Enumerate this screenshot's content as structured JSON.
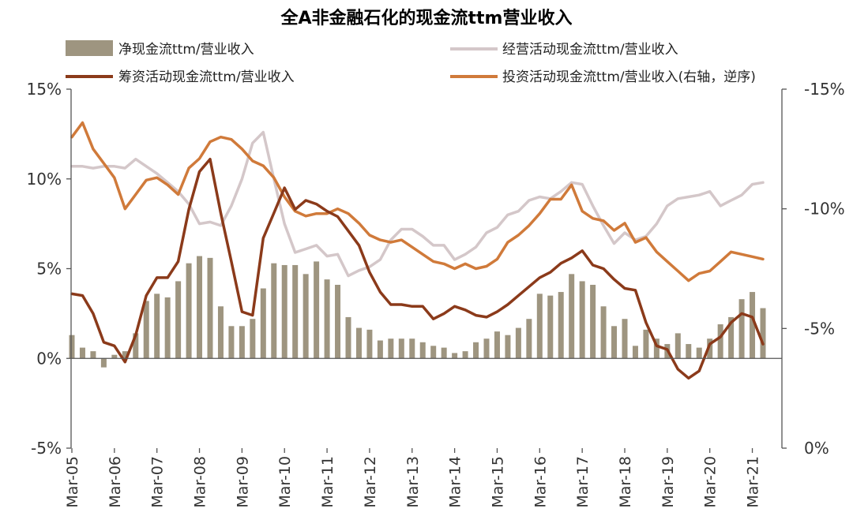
{
  "chart_data": {
    "type": "combo",
    "title": "全A非金融石化的现金流ttm营业收入",
    "left_axis": {
      "ylim": [
        -5,
        15
      ],
      "ticks": [
        "-5%",
        "0%",
        "5%",
        "10%",
        "15%"
      ]
    },
    "right_axis": {
      "ylim": [
        0,
        -15
      ],
      "inverted": true,
      "ticks": [
        "0%",
        "-5%",
        "-10%",
        "-15%"
      ]
    },
    "x_labels": [
      "Mar-05",
      "Mar-06",
      "Mar-07",
      "Mar-08",
      "Mar-09",
      "Mar-10",
      "Mar-11",
      "Mar-12",
      "Mar-13",
      "Mar-14",
      "Mar-15",
      "Mar-16",
      "Mar-17",
      "Mar-18",
      "Mar-19",
      "Mar-20",
      "Mar-21"
    ],
    "x_start": 2005.0,
    "x_step": 0.25,
    "legend": {
      "net": "净现金流ttm/营业收入",
      "operating": "经营活动现金流ttm/营业收入",
      "financing": "筹资活动现金流ttm/营业收入",
      "investing": "投资活动现金流ttm/营业收入(右轴，逆序)"
    },
    "colors": {
      "net": "#9e9580",
      "operating": "#d4c7c9",
      "financing": "#8b3a1a",
      "investing": "#d07a3a"
    },
    "series": [
      {
        "name": "净现金流ttm/营业收入",
        "type": "bar",
        "axis": "left",
        "values": [
          1.3,
          0.6,
          0.4,
          -0.5,
          0.2,
          0.4,
          1.4,
          3.2,
          3.6,
          3.4,
          4.3,
          5.3,
          5.7,
          5.6,
          2.9,
          1.8,
          1.8,
          2.2,
          3.9,
          5.3,
          5.2,
          5.2,
          4.7,
          5.4,
          4.4,
          4.1,
          2.3,
          1.7,
          1.6,
          1.0,
          1.1,
          1.1,
          1.1,
          0.9,
          0.7,
          0.6,
          0.3,
          0.4,
          0.9,
          1.1,
          1.5,
          1.3,
          1.7,
          2.2,
          3.6,
          3.5,
          3.7,
          4.7,
          4.3,
          4.1,
          2.9,
          1.8,
          2.2,
          0.7,
          1.6,
          1.1,
          0.8,
          1.4,
          0.8,
          0.6,
          1.1,
          1.9,
          2.3,
          3.3,
          3.7,
          2.8
        ]
      },
      {
        "name": "经营活动现金流ttm/营业收入",
        "type": "line",
        "axis": "left",
        "values": [
          10.7,
          10.7,
          10.6,
          10.7,
          10.7,
          10.6,
          11.1,
          10.7,
          10.3,
          9.8,
          9.3,
          8.6,
          7.5,
          7.6,
          7.4,
          8.5,
          10.0,
          12.0,
          12.6,
          10.0,
          7.5,
          5.9,
          6.1,
          6.3,
          5.7,
          5.8,
          4.6,
          4.9,
          5.1,
          5.5,
          6.6,
          7.2,
          7.2,
          6.8,
          6.3,
          6.3,
          5.5,
          5.8,
          6.2,
          7.0,
          7.3,
          8.0,
          8.2,
          8.8,
          9.0,
          8.9,
          9.3,
          9.8,
          9.7,
          8.5,
          7.4,
          6.4,
          7.0,
          6.6,
          6.8,
          7.5,
          8.5,
          8.9,
          9.0,
          9.1,
          9.3,
          8.5,
          8.8,
          9.1,
          9.7,
          9.8
        ]
      },
      {
        "name": "筹资活动现金流ttm/营业收入",
        "type": "line",
        "axis": "left",
        "values": [
          3.6,
          3.5,
          2.5,
          0.9,
          0.7,
          -0.2,
          1.3,
          3.5,
          4.5,
          4.5,
          5.4,
          8.3,
          10.4,
          11.1,
          8.1,
          5.4,
          2.6,
          2.4,
          6.7,
          8.1,
          9.5,
          8.3,
          8.8,
          8.6,
          8.2,
          7.9,
          7.1,
          6.3,
          4.8,
          3.7,
          3.0,
          3.0,
          2.9,
          2.9,
          2.2,
          2.5,
          2.9,
          2.7,
          2.4,
          2.3,
          2.6,
          3.0,
          3.5,
          4.0,
          4.5,
          4.8,
          5.3,
          5.6,
          6.0,
          5.2,
          5.0,
          4.4,
          3.9,
          3.8,
          2.0,
          0.7,
          0.5,
          -0.6,
          -1.1,
          -0.7,
          0.8,
          1.2,
          2.0,
          2.5,
          2.3,
          0.8
        ]
      },
      {
        "name": "投资活动现金流ttm/营业收入(右轴，逆序)",
        "type": "line",
        "axis": "right",
        "values": [
          -13.0,
          -13.6,
          -12.5,
          -11.9,
          -11.3,
          -10.0,
          -10.6,
          -11.2,
          -11.3,
          -11.0,
          -10.6,
          -11.7,
          -12.1,
          -12.8,
          -13.0,
          -12.9,
          -12.5,
          -12.0,
          -11.8,
          -11.3,
          -10.5,
          -9.9,
          -9.7,
          -9.8,
          -9.8,
          -10.0,
          -9.8,
          -9.4,
          -8.9,
          -8.7,
          -8.6,
          -8.7,
          -8.4,
          -8.1,
          -7.8,
          -7.7,
          -7.5,
          -7.7,
          -7.5,
          -7.6,
          -7.9,
          -8.6,
          -8.9,
          -9.3,
          -9.8,
          -10.4,
          -10.4,
          -11.0,
          -9.9,
          -9.6,
          -9.5,
          -9.1,
          -9.4,
          -8.6,
          -8.8,
          -8.2,
          -7.8,
          -7.4,
          -7.0,
          -7.3,
          -7.4,
          -7.8,
          -8.2,
          -8.1,
          -8.0,
          -7.9
        ]
      }
    ]
  }
}
